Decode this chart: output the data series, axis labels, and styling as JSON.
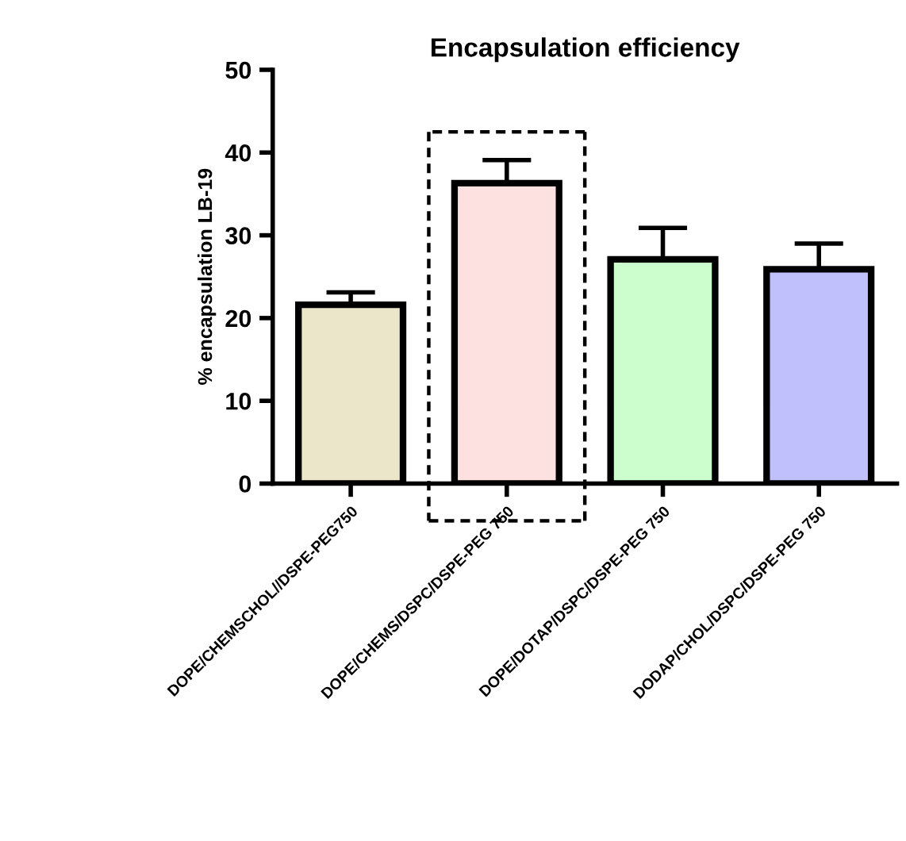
{
  "chart_data": {
    "type": "bar",
    "title": "Encapsulation efficiency",
    "ylabel": "% encapsulation LB-19",
    "categories": [
      "DOPE/CHEMSCHOL//DSPE-PEG750",
      "DOPE/CHEMS/DSPC/DSPE-PEG 750",
      "DOPE/DOTAP/DSPC/DSPE-PEG 750",
      "DODAP/CHOL/DSPC/DSPE-PEG 750"
    ],
    "values": [
      21.6,
      36.3,
      27.1,
      25.9
    ],
    "errors": [
      [
        21.6,
        23.1
      ],
      [
        36.3,
        39.1
      ],
      [
        27.1,
        30.9
      ],
      [
        25.9,
        29.0
      ]
    ],
    "colors": [
      "#ebe5c9",
      "#fde0e0",
      "#ccfdcc",
      "#c0c0fd"
    ],
    "ylim": [
      0,
      50
    ],
    "yticks": [
      0,
      10,
      20,
      30,
      40,
      50
    ],
    "grid": false
  }
}
